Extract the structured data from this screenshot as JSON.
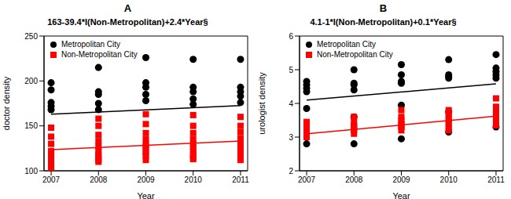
{
  "chart_data": [
    {
      "type": "scatter",
      "title": "A",
      "subtitle": "163-39.4*I(Non-Metropolitan)+2.4*Year§",
      "xlabel": "Year",
      "ylabel": "doctor density",
      "xlim": [
        2006.85,
        2011.15
      ],
      "xticks": [
        2007,
        2008,
        2009,
        2010,
        2011
      ],
      "ylim": [
        100,
        250
      ],
      "yticks": [
        100,
        150,
        200,
        250
      ],
      "grid": false,
      "legend": "top-left",
      "series": [
        {
          "name": "Metropolitan City",
          "color": "#000000",
          "marker": "circle",
          "x": [
            2007,
            2007,
            2007,
            2007,
            2007,
            2008,
            2008,
            2008,
            2008,
            2008,
            2009,
            2009,
            2009,
            2009,
            2009,
            2010,
            2010,
            2010,
            2010,
            2010,
            2011,
            2011,
            2011,
            2011,
            2011
          ],
          "values": [
            198,
            190,
            176,
            172,
            168,
            215,
            188,
            185,
            175,
            168,
            226,
            198,
            193,
            185,
            178,
            224,
            193,
            188,
            180,
            174,
            224,
            193,
            188,
            183,
            176
          ],
          "fit_x": [
            2007,
            2011
          ],
          "fit_values": [
            163,
            172.6
          ]
        },
        {
          "name": "Non-Metropolitan City",
          "color": "#ff0000",
          "marker": "square",
          "x": [
            2007,
            2007,
            2007,
            2007,
            2007,
            2007,
            2007,
            2007,
            2007,
            2007,
            2008,
            2008,
            2008,
            2008,
            2008,
            2008,
            2008,
            2008,
            2008,
            2008,
            2009,
            2009,
            2009,
            2009,
            2009,
            2009,
            2009,
            2009,
            2009,
            2009,
            2010,
            2010,
            2010,
            2010,
            2010,
            2010,
            2010,
            2010,
            2010,
            2010,
            2011,
            2011,
            2011,
            2011,
            2011,
            2011,
            2011,
            2011,
            2011,
            2011
          ],
          "values": [
            148,
            138,
            130,
            122,
            118,
            115,
            112,
            108,
            105,
            103,
            158,
            150,
            140,
            133,
            127,
            122,
            118,
            115,
            112,
            110,
            163,
            152,
            142,
            135,
            130,
            127,
            124,
            120,
            117,
            112,
            162,
            150,
            142,
            135,
            130,
            126,
            122,
            118,
            115,
            113,
            160,
            150,
            143,
            136,
            130,
            126,
            122,
            117,
            114,
            112
          ],
          "fit_x": [
            2007,
            2011
          ],
          "fit_values": [
            123.6,
            133.2
          ]
        }
      ]
    },
    {
      "type": "scatter",
      "title": "B",
      "subtitle": "4.1-1*I(Non-Metropolitan)+0.1*Year§",
      "xlabel": "Year",
      "ylabel": "urologist density",
      "xlim": [
        2006.85,
        2011.15
      ],
      "xticks": [
        2007,
        2008,
        2009,
        2010,
        2011
      ],
      "ylim": [
        2,
        6
      ],
      "yticks": [
        2,
        3,
        4,
        5,
        6
      ],
      "grid": false,
      "legend": "top-left",
      "series": [
        {
          "name": "Metropolitan City",
          "color": "#000000",
          "marker": "circle",
          "x": [
            2007,
            2007,
            2007,
            2007,
            2007,
            2007,
            2008,
            2008,
            2008,
            2008,
            2008,
            2008,
            2009,
            2009,
            2009,
            2009,
            2009,
            2009,
            2010,
            2010,
            2010,
            2010,
            2010,
            2010,
            2011,
            2011,
            2011,
            2011,
            2011,
            2011
          ],
          "values": [
            4.65,
            4.55,
            4.45,
            4.35,
            3.85,
            2.8,
            5.0,
            4.6,
            4.55,
            4.4,
            3.6,
            2.8,
            5.15,
            4.85,
            4.65,
            4.6,
            3.95,
            2.95,
            5.3,
            4.85,
            4.8,
            4.75,
            3.75,
            3.15,
            5.45,
            5.05,
            4.95,
            4.85,
            4.75,
            3.3
          ],
          "fit_x": [
            2007,
            2011
          ],
          "fit_values": [
            4.1,
            4.58
          ]
        },
        {
          "name": "Non-Metropolitan City",
          "color": "#ff0000",
          "marker": "square",
          "x": [
            2007,
            2007,
            2007,
            2007,
            2007,
            2007,
            2007,
            2008,
            2008,
            2008,
            2008,
            2008,
            2008,
            2008,
            2009,
            2009,
            2009,
            2009,
            2009,
            2009,
            2009,
            2010,
            2010,
            2010,
            2010,
            2010,
            2010,
            2010,
            2011,
            2011,
            2011,
            2011,
            2011,
            2011,
            2011
          ],
          "values": [
            3.45,
            3.4,
            3.3,
            3.2,
            3.15,
            3.1,
            3.0,
            3.6,
            3.45,
            3.35,
            3.3,
            3.25,
            3.2,
            3.1,
            3.8,
            3.6,
            3.5,
            3.4,
            3.35,
            3.3,
            3.2,
            3.8,
            3.7,
            3.6,
            3.5,
            3.4,
            3.3,
            3.2,
            4.15,
            3.9,
            3.8,
            3.7,
            3.6,
            3.45,
            3.35
          ],
          "fit_x": [
            2007,
            2011
          ],
          "fit_values": [
            3.1,
            3.62
          ]
        }
      ]
    }
  ]
}
